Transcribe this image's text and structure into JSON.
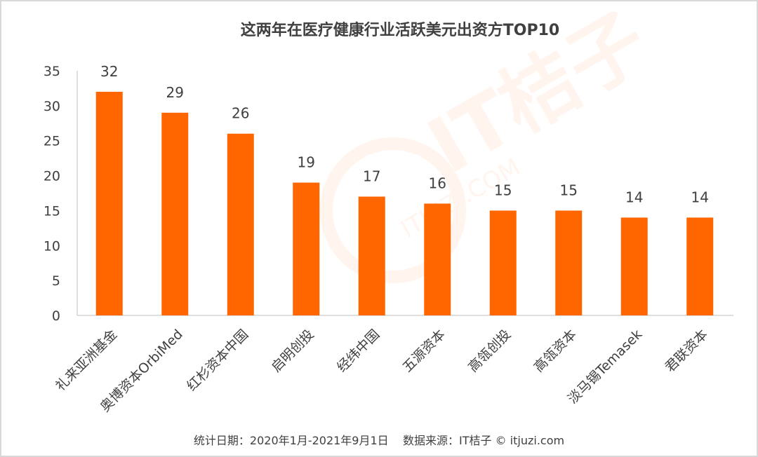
{
  "chart_data": {
    "type": "bar",
    "title": "这两年在医疗健康行业活跃美元出资方TOP10",
    "categories": [
      "礼来亚洲基金",
      "奥博资本OrbiMed",
      "红杉资本中国",
      "启明创投",
      "经纬中国",
      "五源资本",
      "高瓴创投",
      "高瓴资本",
      "淡马锡Temasek",
      "君联资本"
    ],
    "values": [
      32,
      29,
      26,
      19,
      17,
      16,
      15,
      15,
      14,
      14
    ],
    "ylim": [
      0,
      35
    ],
    "yticks": [
      0,
      5,
      10,
      15,
      20,
      25,
      30,
      35
    ],
    "xlabel": "",
    "ylabel": "",
    "grid": false,
    "bar_color": "#ff6600",
    "data_labels": true
  },
  "footer": "统计日期：2020年1月-2021年9月1日    数据来源：IT桔子 © itjuzi.com",
  "watermark": {
    "brand": "IT桔子",
    "url": "ITJUZI.COM"
  }
}
